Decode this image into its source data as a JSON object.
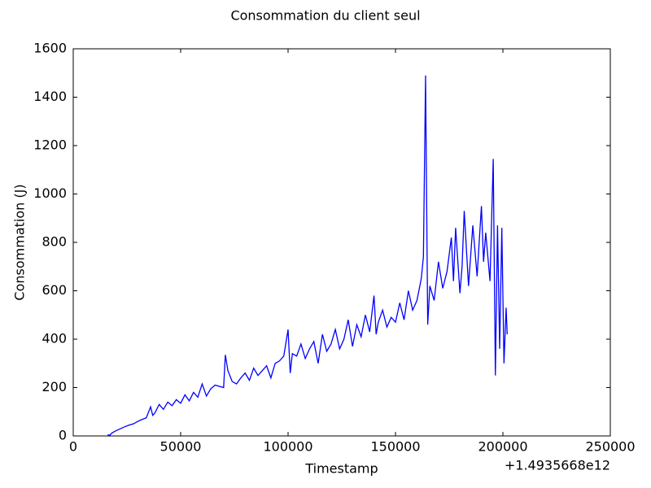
{
  "chart_data": {
    "type": "line",
    "title": "Consommation du client seul",
    "x_label": "Timestamp",
    "y_label": "Consommation (J)",
    "x_offset_label": "+1.4935668e12",
    "x": [
      16000,
      17000,
      18000,
      20000,
      22000,
      24000,
      26000,
      28000,
      30000,
      32000,
      34000,
      36000,
      37000,
      38000,
      40000,
      42000,
      44000,
      46000,
      48000,
      50000,
      52000,
      54000,
      56000,
      58000,
      60000,
      62000,
      64000,
      66000,
      68000,
      70000,
      70800,
      72000,
      74000,
      76000,
      78000,
      80000,
      82000,
      84000,
      86000,
      88000,
      90000,
      92000,
      94000,
      96000,
      98000,
      100000,
      101000,
      102000,
      104000,
      106000,
      108000,
      110000,
      112000,
      114000,
      116000,
      118000,
      120000,
      122000,
      124000,
      126000,
      128000,
      130000,
      132000,
      134000,
      136000,
      138000,
      140000,
      141000,
      142000,
      144000,
      146000,
      148000,
      150000,
      152000,
      154000,
      156000,
      158000,
      160000,
      162000,
      163000,
      164000,
      165000,
      166000,
      168000,
      170000,
      172000,
      174000,
      176000,
      177000,
      178000,
      180000,
      181000,
      182000,
      184000,
      186000,
      188000,
      190000,
      191000,
      192000,
      194000,
      195500,
      196500,
      197500,
      198500,
      199500,
      200500,
      201500,
      202000
    ],
    "series": [
      {
        "name": "Consommation",
        "color": "#0000ff",
        "values": [
          5,
          3,
          12,
          22,
          30,
          38,
          45,
          50,
          60,
          68,
          75,
          120,
          85,
          95,
          130,
          110,
          140,
          125,
          150,
          135,
          170,
          145,
          180,
          160,
          215,
          165,
          195,
          210,
          205,
          200,
          335,
          270,
          225,
          215,
          240,
          260,
          230,
          280,
          250,
          270,
          290,
          240,
          300,
          310,
          330,
          440,
          260,
          340,
          330,
          380,
          320,
          360,
          390,
          300,
          420,
          350,
          380,
          440,
          360,
          400,
          480,
          370,
          460,
          410,
          500,
          430,
          580,
          420,
          470,
          520,
          450,
          490,
          470,
          550,
          480,
          600,
          520,
          560,
          650,
          740,
          1490,
          460,
          620,
          560,
          720,
          610,
          680,
          820,
          640,
          860,
          590,
          700,
          930,
          620,
          870,
          660,
          950,
          720,
          840,
          640,
          1145,
          250,
          870,
          360,
          860,
          300,
          530,
          420
        ]
      }
    ],
    "xlim": [
      0,
      250000
    ],
    "ylim": [
      0,
      1600
    ],
    "xticks": [
      0,
      50000,
      100000,
      150000,
      200000,
      250000
    ],
    "yticks": [
      0,
      200,
      400,
      600,
      800,
      1000,
      1200,
      1400,
      1600
    ],
    "grid": false
  }
}
